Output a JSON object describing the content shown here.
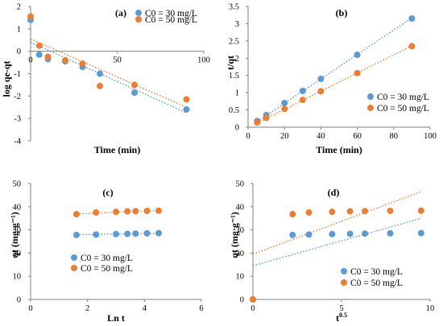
{
  "colors": {
    "s30": "#5b9bd5",
    "s50": "#ed7d31",
    "axis": "#7f7f7f"
  },
  "chart_data": [
    {
      "type": "scatter",
      "panel_label": "(a)",
      "xlabel": "Time (min)",
      "ylabel": "log qe-qt",
      "xlim": [
        0,
        100
      ],
      "ylim": [
        -4,
        2
      ],
      "xticks": [
        0,
        50,
        100
      ],
      "xtick_labels": [
        "0",
        "50",
        "100"
      ],
      "yticks": [
        -4,
        -3,
        -2,
        -1,
        0,
        1,
        2
      ],
      "ytick_labels": [
        "-4",
        "-3",
        "-2",
        "-1",
        "0",
        "1",
        "2"
      ],
      "x_axis_at_y": 0,
      "grid": false,
      "legend": "top-right",
      "series": [
        {
          "name": "C0 = 30 mg/L",
          "color": "#5b9bd5",
          "x": [
            0,
            5,
            10,
            20,
            30,
            40,
            60,
            90
          ],
          "y": [
            1.4,
            -0.15,
            -0.35,
            -0.45,
            -0.7,
            -1.0,
            -1.85,
            -2.6
          ],
          "trend": [
            [
              0,
              0.4
            ],
            [
              90,
              -2.75
            ]
          ]
        },
        {
          "name": "C0 = 50 mg/L",
          "color": "#ed7d31",
          "x": [
            0,
            5,
            10,
            20,
            30,
            40,
            60,
            90
          ],
          "y": [
            1.55,
            0.25,
            -0.25,
            -0.4,
            -0.55,
            -1.55,
            -1.5,
            -2.15
          ],
          "trend": [
            [
              0,
              0.55
            ],
            [
              90,
              -2.5
            ]
          ]
        }
      ]
    },
    {
      "type": "scatter",
      "panel_label": "(b)",
      "xlabel": "Time (min)",
      "ylabel": "t/qt",
      "xlim": [
        0,
        100
      ],
      "ylim": [
        0,
        3.5
      ],
      "xticks": [
        0,
        20,
        40,
        60,
        80,
        100
      ],
      "xtick_labels": [
        "0",
        "20",
        "40",
        "60",
        "80",
        "100"
      ],
      "yticks": [
        0,
        0.5,
        1,
        1.5,
        2,
        2.5,
        3,
        3.5
      ],
      "ytick_labels": [
        "0",
        "0.5",
        "1",
        "1.5",
        "2",
        "2.5",
        "3",
        "3.5"
      ],
      "grid": false,
      "legend": "bottom-right",
      "series": [
        {
          "name": "C0 = 30 mg/L",
          "color": "#5b9bd5",
          "x": [
            5,
            10,
            20,
            30,
            40,
            60,
            90
          ],
          "y": [
            0.18,
            0.35,
            0.7,
            1.05,
            1.4,
            2.1,
            3.15
          ],
          "trend": [
            [
              5,
              0.16
            ],
            [
              90,
              3.17
            ]
          ]
        },
        {
          "name": "C0 = 50 mg/L",
          "color": "#ed7d31",
          "x": [
            5,
            10,
            20,
            30,
            40,
            60,
            90
          ],
          "y": [
            0.14,
            0.27,
            0.53,
            0.79,
            1.04,
            1.57,
            2.35
          ],
          "trend": [
            [
              5,
              0.12
            ],
            [
              90,
              2.36
            ]
          ]
        }
      ]
    },
    {
      "type": "scatter",
      "panel_label": "(c)",
      "xlabel": "Ln t",
      "ylabel": "qt (mg·g⁻¹)",
      "xlim": [
        0,
        6
      ],
      "ylim": [
        0,
        50
      ],
      "xticks": [
        0,
        2,
        4,
        6
      ],
      "xtick_labels": [
        "0",
        "2",
        "4",
        "6"
      ],
      "yticks": [
        0,
        10,
        20,
        30,
        40,
        50
      ],
      "ytick_labels": [
        "0",
        "10",
        "20",
        "30",
        "40",
        "50"
      ],
      "grid": false,
      "legend": "bottom-left",
      "series": [
        {
          "name": "C0 = 30 mg/L",
          "color": "#5b9bd5",
          "x": [
            1.61,
            2.3,
            3.0,
            3.4,
            3.69,
            4.09,
            4.5
          ],
          "y": [
            27.8,
            28.0,
            28.2,
            28.3,
            28.4,
            28.5,
            28.6
          ],
          "trend": [
            [
              1.61,
              27.9
            ],
            [
              4.5,
              28.6
            ]
          ]
        },
        {
          "name": "C0 = 50 mg/L",
          "color": "#ed7d31",
          "x": [
            1.61,
            2.3,
            3.0,
            3.4,
            3.69,
            4.09,
            4.5
          ],
          "y": [
            36.8,
            37.5,
            37.8,
            38.0,
            38.1,
            38.2,
            38.3
          ],
          "trend": [
            [
              1.61,
              36.9
            ],
            [
              4.5,
              38.4
            ]
          ]
        }
      ]
    },
    {
      "type": "scatter",
      "panel_label": "(d)",
      "xlabel": "t",
      "xlabel_sup": "0.5",
      "ylabel": "qt (mg·g⁻¹)",
      "xlim": [
        0,
        10
      ],
      "ylim": [
        0,
        50
      ],
      "xticks": [
        0,
        5,
        10
      ],
      "xtick_labels": [
        "0",
        "5",
        "10"
      ],
      "yticks": [
        0,
        10,
        20,
        30,
        40,
        50
      ],
      "ytick_labels": [
        "0",
        "10",
        "20",
        "30",
        "40",
        "50"
      ],
      "grid": false,
      "legend": "bottom-right",
      "series": [
        {
          "name": "C0 = 30 mg/L",
          "color": "#5b9bd5",
          "x": [
            0,
            2.24,
            3.16,
            4.47,
            5.48,
            6.32,
            7.75,
            9.49
          ],
          "y": [
            0,
            27.8,
            28.0,
            28.2,
            28.3,
            28.4,
            28.5,
            28.6
          ],
          "trend": [
            [
              0,
              14.5
            ],
            [
              9.5,
              35.0
            ]
          ]
        },
        {
          "name": "C0 = 50 mg/L",
          "color": "#ed7d31",
          "x": [
            0,
            2.24,
            3.16,
            4.47,
            5.48,
            6.32,
            7.75,
            9.49
          ],
          "y": [
            0,
            36.8,
            37.5,
            37.8,
            38.0,
            38.1,
            38.2,
            38.3
          ],
          "trend": [
            [
              0,
              19.5
            ],
            [
              9.5,
              46.5
            ]
          ]
        }
      ]
    }
  ]
}
